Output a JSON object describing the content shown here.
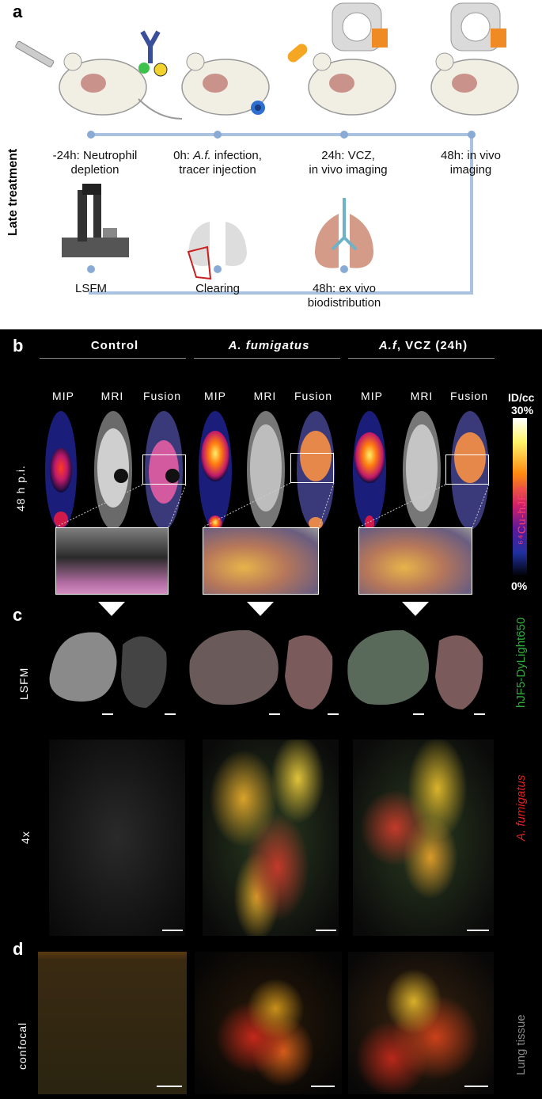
{
  "panel_a": {
    "letter": "a",
    "side_label": "Late treatment",
    "steps": [
      {
        "line1": "-24h: Neutrophil",
        "line2": "depletion"
      },
      {
        "line1_pre": "0h: ",
        "line1_italic": "A.f.",
        "line1_post": " infection,",
        "line2": "tracer injection"
      },
      {
        "line1": "24h: VCZ,",
        "line2": "in vivo imaging"
      },
      {
        "line1": "48h: in vivo",
        "line2": "imaging"
      }
    ],
    "steps_bottom": [
      {
        "line1": "LSFM",
        "line2": ""
      },
      {
        "line1": "Clearing",
        "line2": ""
      },
      {
        "line1": "48h: ex vivo",
        "line2": "biodistribution"
      }
    ],
    "timeline_color": "#a9c2e0"
  },
  "panel_b": {
    "letter": "b",
    "groups": [
      {
        "title": "Control",
        "italic": false
      },
      {
        "title_italic": "A. fumigatus",
        "title_rest": ""
      },
      {
        "title_italic": "A.f",
        "title_rest": ", VCZ (24h)"
      }
    ],
    "columns": [
      "MIP",
      "MRI",
      "Fusion"
    ],
    "row_label": "48 h p.i.",
    "colorbar": {
      "unit": "ID/cc",
      "max": "30%",
      "min": "0%",
      "tracer": "⁶⁴Cu-hJF5"
    }
  },
  "panel_c": {
    "letter": "c",
    "row1_label": "LSFM",
    "row2_label": "4x",
    "side_label_green": "hJF5-DyLight650",
    "side_label_red": "A. fumigatus",
    "green": "#2fae3a",
    "red": "#e02020"
  },
  "panel_d": {
    "letter": "d",
    "row_label": "confocal",
    "side_label": "Lung tissue"
  }
}
